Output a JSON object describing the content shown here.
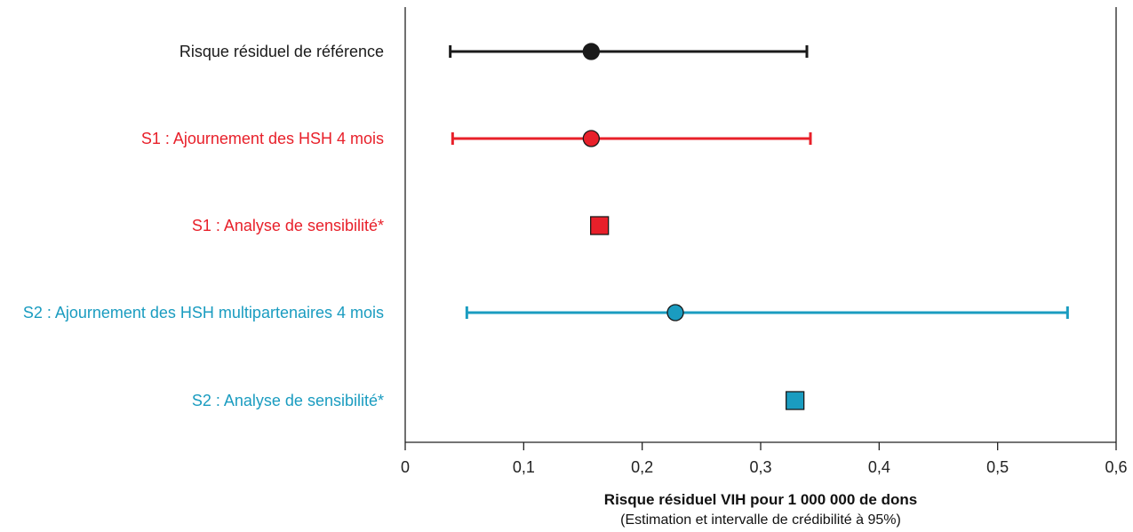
{
  "chart_data": {
    "type": "forest",
    "title": "",
    "xlabel": "Risque résiduel VIH pour 1 000 000 de dons",
    "xlabel_sub": "(Estimation et intervalle de crédibilité à 95%)",
    "xlim": [
      0,
      0.6
    ],
    "xticks": [
      0,
      0.1,
      0.2,
      0.3,
      0.4,
      0.5,
      0.6
    ],
    "xtick_labels": [
      "0",
      "0,1",
      "0,2",
      "0,3",
      "0,4",
      "0,5",
      "0,6"
    ],
    "grid": false,
    "rows": [
      {
        "label": "Risque résiduel de référence",
        "color": "#1a1a1a",
        "marker": "circle",
        "estimate": 0.157,
        "low": 0.038,
        "high": 0.339
      },
      {
        "label": "S1 : Ajournement des HSH 4 mois",
        "color": "#e8202a",
        "marker": "circle",
        "estimate": 0.157,
        "low": 0.04,
        "high": 0.342
      },
      {
        "label": "S1 : Analyse de sensibilité*",
        "color": "#e8202a",
        "marker": "square",
        "estimate": 0.164,
        "low": null,
        "high": null
      },
      {
        "label": "S2 : Ajournement des HSH multipartenaires 4 mois",
        "color": "#1a9cc0",
        "marker": "circle",
        "estimate": 0.228,
        "low": 0.052,
        "high": 0.559
      },
      {
        "label": "S2 : Analyse de sensibilité*",
        "color": "#1a9cc0",
        "marker": "square",
        "estimate": 0.329,
        "low": null,
        "high": null
      }
    ]
  }
}
